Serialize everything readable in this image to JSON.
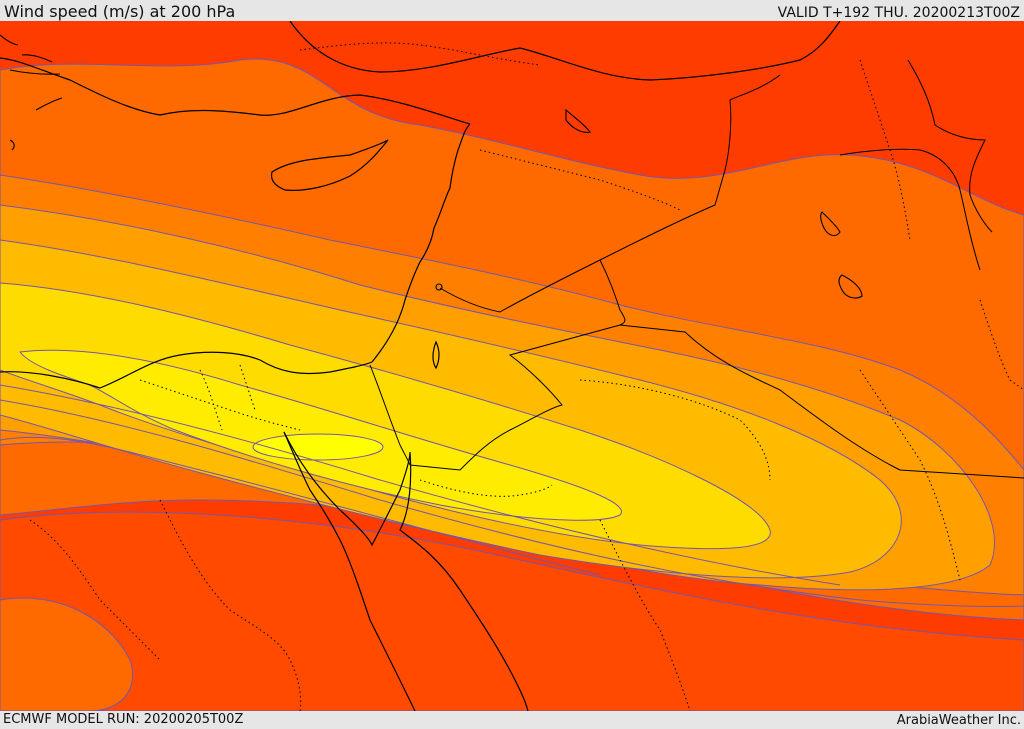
{
  "header": {
    "title": "Wind speed (m/s) at 200 hPa",
    "valid": "VALID T+192 THU. 20200213T00Z"
  },
  "footer": {
    "model_run": "ECMWF MODEL RUN: 20200205T00Z",
    "credit": "ArabiaWeather Inc."
  },
  "map": {
    "field": "wind speed",
    "level": "200 hPa",
    "region": "Eastern Mediterranean, Egypt, Levant, Arabian Peninsula",
    "colors": {
      "band_1": "#ff3c00",
      "band_2": "#ff5a00",
      "band_3": "#ff7a00",
      "band_4": "#ff9a00",
      "band_5": "#ffb800",
      "band_6": "#ffdc00",
      "band_7": "#ffff00",
      "contour": "#7755aa",
      "coastline": "#000000"
    }
  }
}
